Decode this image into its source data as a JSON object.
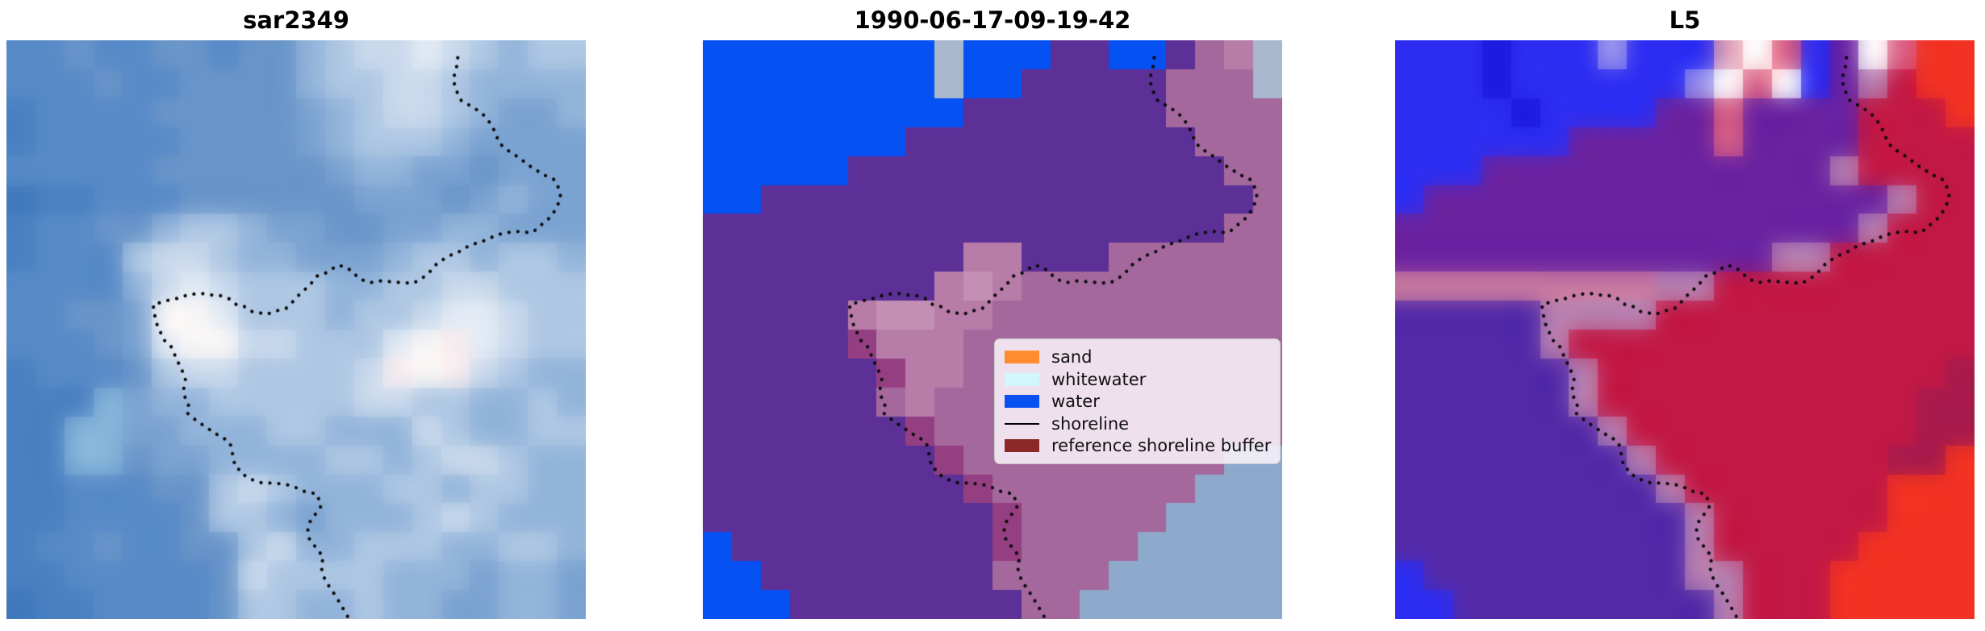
{
  "figure": {
    "background": "#ffffff"
  },
  "chart_data": [
    {
      "type": "heatmap",
      "title": "sar2349",
      "render_soft": 0.75,
      "palette": {
        "0": "#4a80c1",
        "1": "#578ac7",
        "2": "#6995c9",
        "3": "#7ba3d1",
        "4": "#93b4da",
        "5": "#aec7e3",
        "6": "#c9d9ec",
        "7": "#e2eaf4",
        "8": "#f8f6f6",
        "9": "#85b4d9",
        "a": "#3f78bc",
        "b": "#f7ecee"
      },
      "grid": [
        "11211221224566765455",
        "11121122224556654444",
        "01111222223456654334",
        "01111122223455543333",
        "11111222222344332333",
        "a0011122222233323433",
        "01122455433223344333",
        "01115665443334554554",
        "11114676555445566555",
        "11223887555455677655",
        "111237886655578b7655",
        "0111256655556b8b6544",
        "00093445555566554454",
        "00993344455444654455",
        "00992334444554566544",
        "00111225654445545544",
        "00111125543444565444",
        "01121122564455544554",
        "00111112655554443443",
        "a0011112554454433443"
      ]
    },
    {
      "type": "heatmap",
      "title": "1990-06-17-09-19-42",
      "render_soft": 0,
      "palette": {
        "0": "#0551f2",
        "1": "#5c3097",
        "2": "#a4689c",
        "3": "#b77da8",
        "4": "#a9b7cf",
        "5": "#8da9cc",
        "6": "#943f82",
        "7": "#c48fb4"
      },
      "grid": [
        "00000000400011001234",
        "00000000400111112224",
        "00000000011111112222",
        "00000001111111111222",
        "00000111111111111122",
        "00111111111111111112",
        "11111111111111111122",
        "11111111133111222222",
        "11111111373222222222",
        "11111377332222222222",
        "11111633322222222222",
        "11111163322222222222",
        "11111123222222222222",
        "11111116222222222222",
        "11111111622222222255",
        "11111111162222222555",
        "11111111116222225555",
        "01111111116222255555",
        "00111111112222555555",
        "00011111111225555555"
      ]
    },
    {
      "type": "heatmap",
      "title": "L5",
      "render_soft": 0.55,
      "palette": {
        "0": "#2d2df2",
        "1": "#1b18e0",
        "2": "#6b22a0",
        "3": "#5329a8",
        "4": "#c21845",
        "5": "#a81a4c",
        "6": "#f23222",
        "7": "#c9799f",
        "8": "#e0a0b8",
        "9": "#ffffff",
        "a": "#9a93ec",
        "b": "#d95f85",
        "c": "#b77fb0",
        "d": "#e8c9d4"
      },
      "grid": [
        "0001000a00089b029b66",
        "0001000000a9b902c466",
        "00001000022b22224446",
        "00000022222b22224444",
        "000222222222222c4444",
        "02222222222222222c44",
        "2222222222222222c444",
        "2222222222222cc44444",
        "777777777cc444444444",
        "33333cccc44444444444",
        "33333c44444444444444",
        "333333c4444444444445",
        "333333c4444444444455",
        "3333333c444444444455",
        "33333333c44444444556",
        "333333333c4444444666",
        "3333333333c444444666",
        "3333333333c444446666",
        "0333333333cc44466666",
        "00333333333c44466666"
      ]
    }
  ],
  "legend": {
    "items": [
      {
        "label": "sand",
        "color": "#ff8c2e",
        "type": "patch"
      },
      {
        "label": "whitewater",
        "color": "#d2f6fb",
        "type": "patch"
      },
      {
        "label": "water",
        "color": "#0851f0",
        "type": "patch"
      },
      {
        "label": "shoreline",
        "color": "#000000",
        "type": "line"
      },
      {
        "label": "reference shoreline buffer",
        "color": "#8b2929",
        "type": "patch"
      }
    ]
  },
  "shoreline_color": "#0a0a0a",
  "shoreline_path": [
    [
      0.779,
      0.03
    ],
    [
      0.777,
      0.046
    ],
    [
      0.771,
      0.068
    ],
    [
      0.777,
      0.088
    ],
    [
      0.785,
      0.104
    ],
    [
      0.802,
      0.114
    ],
    [
      0.82,
      0.125
    ],
    [
      0.834,
      0.142
    ],
    [
      0.841,
      0.154
    ],
    [
      0.851,
      0.178
    ],
    [
      0.862,
      0.188
    ],
    [
      0.875,
      0.197
    ],
    [
      0.886,
      0.203
    ],
    [
      0.9,
      0.216
    ],
    [
      0.911,
      0.221
    ],
    [
      0.922,
      0.23
    ],
    [
      0.935,
      0.236
    ],
    [
      0.946,
      0.241
    ],
    [
      0.952,
      0.253
    ],
    [
      0.957,
      0.272
    ],
    [
      0.949,
      0.29
    ],
    [
      0.94,
      0.305
    ],
    [
      0.93,
      0.313
    ],
    [
      0.921,
      0.321
    ],
    [
      0.913,
      0.328
    ],
    [
      0.904,
      0.333
    ],
    [
      0.889,
      0.33
    ],
    [
      0.874,
      0.331
    ],
    [
      0.861,
      0.333
    ],
    [
      0.847,
      0.336
    ],
    [
      0.83,
      0.344
    ],
    [
      0.818,
      0.349
    ],
    [
      0.806,
      0.352
    ],
    [
      0.793,
      0.358
    ],
    [
      0.782,
      0.365
    ],
    [
      0.771,
      0.369
    ],
    [
      0.759,
      0.376
    ],
    [
      0.748,
      0.382
    ],
    [
      0.74,
      0.389
    ],
    [
      0.735,
      0.396
    ],
    [
      0.726,
      0.404
    ],
    [
      0.719,
      0.41
    ],
    [
      0.702,
      0.42
    ],
    [
      0.686,
      0.419
    ],
    [
      0.67,
      0.418
    ],
    [
      0.661,
      0.417
    ],
    [
      0.645,
      0.416
    ],
    [
      0.627,
      0.419
    ],
    [
      0.609,
      0.412
    ],
    [
      0.596,
      0.399
    ],
    [
      0.585,
      0.391
    ],
    [
      0.571,
      0.389
    ],
    [
      0.554,
      0.401
    ],
    [
      0.535,
      0.408
    ],
    [
      0.526,
      0.42
    ],
    [
      0.514,
      0.432
    ],
    [
      0.504,
      0.441
    ],
    [
      0.494,
      0.452
    ],
    [
      0.483,
      0.463
    ],
    [
      0.472,
      0.466
    ],
    [
      0.461,
      0.469
    ],
    [
      0.449,
      0.474
    ],
    [
      0.437,
      0.471
    ],
    [
      0.424,
      0.469
    ],
    [
      0.409,
      0.459
    ],
    [
      0.397,
      0.457
    ],
    [
      0.385,
      0.447
    ],
    [
      0.368,
      0.441
    ],
    [
      0.351,
      0.44
    ],
    [
      0.334,
      0.437
    ],
    [
      0.313,
      0.44
    ],
    [
      0.295,
      0.446
    ],
    [
      0.276,
      0.45
    ],
    [
      0.253,
      0.457
    ],
    [
      0.258,
      0.487
    ],
    [
      0.266,
      0.505
    ],
    [
      0.272,
      0.518
    ],
    [
      0.284,
      0.529
    ],
    [
      0.295,
      0.554
    ],
    [
      0.302,
      0.568
    ],
    [
      0.309,
      0.585
    ],
    [
      0.306,
      0.602
    ],
    [
      0.309,
      0.622
    ],
    [
      0.316,
      0.634
    ],
    [
      0.313,
      0.645
    ],
    [
      0.33,
      0.659
    ],
    [
      0.351,
      0.673
    ],
    [
      0.36,
      0.68
    ],
    [
      0.369,
      0.683
    ],
    [
      0.386,
      0.696
    ],
    [
      0.39,
      0.714
    ],
    [
      0.395,
      0.738
    ],
    [
      0.407,
      0.745
    ],
    [
      0.411,
      0.752
    ],
    [
      0.423,
      0.759
    ],
    [
      0.444,
      0.766
    ],
    [
      0.458,
      0.765
    ],
    [
      0.479,
      0.767
    ],
    [
      0.493,
      0.77
    ],
    [
      0.515,
      0.78
    ],
    [
      0.536,
      0.784
    ],
    [
      0.543,
      0.805
    ],
    [
      0.535,
      0.817
    ],
    [
      0.525,
      0.829
    ],
    [
      0.52,
      0.845
    ],
    [
      0.523,
      0.862
    ],
    [
      0.535,
      0.878
    ],
    [
      0.547,
      0.893
    ],
    [
      0.543,
      0.91
    ],
    [
      0.548,
      0.928
    ],
    [
      0.557,
      0.944
    ],
    [
      0.568,
      0.96
    ],
    [
      0.578,
      0.977
    ],
    [
      0.587,
      0.992
    ],
    [
      0.591,
      1.0
    ]
  ]
}
